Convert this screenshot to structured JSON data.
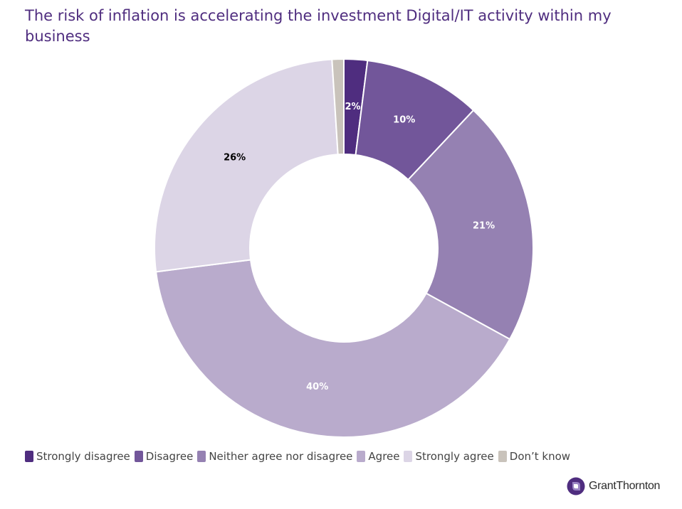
{
  "header": {
    "title": "The risk of inflation is accelerating the investment Digital/IT activity within my business"
  },
  "chart_data": {
    "type": "pie",
    "variant": "donut",
    "title": "The risk of inflation is accelerating the investment Digital/IT activity within my business",
    "legend_position": "bottom-left",
    "slices": [
      {
        "label": "Strongly disagree",
        "value": 2,
        "display": "2%",
        "color": "#4f2d7f",
        "label_color": "#ffffff"
      },
      {
        "label": "Disagree",
        "value": 10,
        "display": "10%",
        "color": "#72569a",
        "label_color": "#ffffff"
      },
      {
        "label": "Neither agree nor disagree",
        "value": 21,
        "display": "21%",
        "color": "#9581b2",
        "label_color": "#ffffff"
      },
      {
        "label": "Agree",
        "value": 40,
        "display": "40%",
        "color": "#b9abcc",
        "label_color": "#ffffff"
      },
      {
        "label": "Strongly agree",
        "value": 26,
        "display": "26%",
        "color": "#dcd5e6",
        "label_color": "#000000"
      },
      {
        "label": "Don’t know",
        "value": 1,
        "display": "",
        "color": "#c9c3bb",
        "label_color": "#000000"
      }
    ]
  },
  "branding": {
    "logo_text": "GrantThornton",
    "logo_icon": "grant-thornton-logo-icon",
    "logo_color": "#4f2d7f"
  }
}
